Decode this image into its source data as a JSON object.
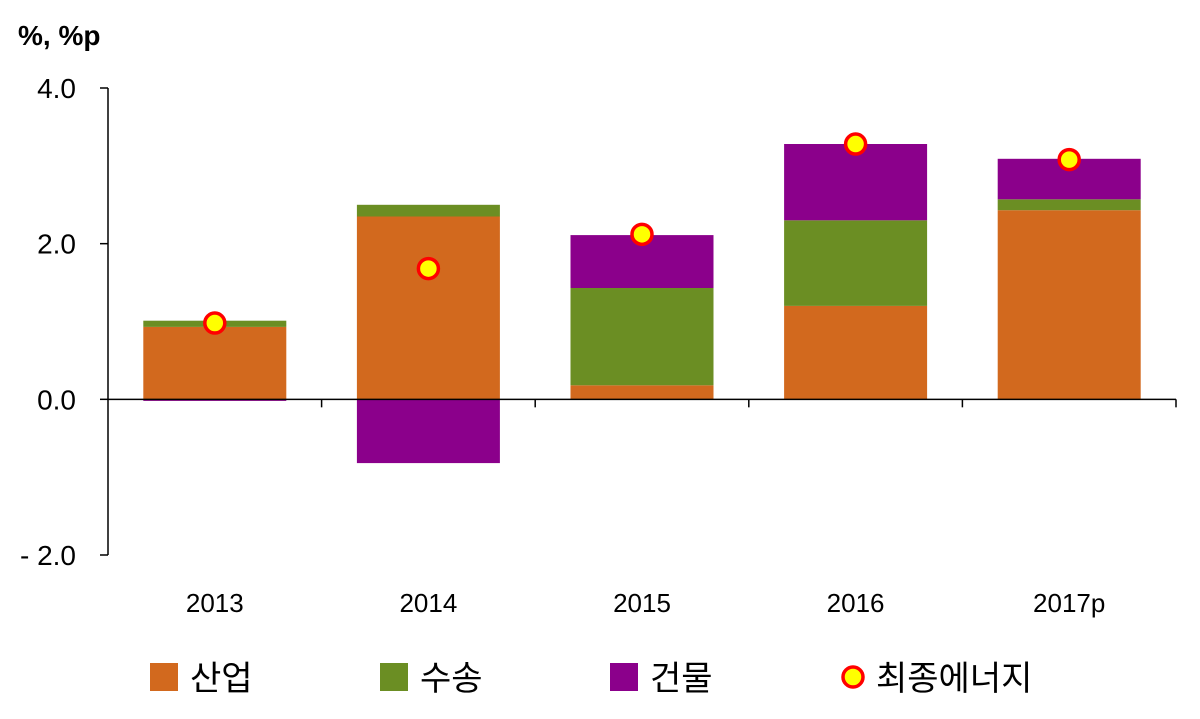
{
  "chart_data": {
    "type": "bar",
    "stacked": true,
    "unit_label": "%, %p",
    "categories": [
      "2013",
      "2014",
      "2015",
      "2016",
      "2017p"
    ],
    "series": [
      {
        "name": "산업",
        "color": "#D2691E",
        "values": [
          0.93,
          2.35,
          0.18,
          1.2,
          2.43
        ]
      },
      {
        "name": "수송",
        "color": "#6B8E23",
        "values": [
          0.08,
          0.15,
          1.25,
          1.1,
          0.14
        ]
      },
      {
        "name": "건물",
        "color": "#8B008B",
        "values": [
          -0.02,
          -0.82,
          0.68,
          0.98,
          0.52
        ]
      }
    ],
    "markers": {
      "name": "최종에너지",
      "fill": "#FFFF00",
      "stroke": "#FF0000",
      "values": [
        0.98,
        1.68,
        2.12,
        3.28,
        3.08
      ]
    },
    "ylim": [
      -2.0,
      4.0
    ],
    "yticks": [
      -2.0,
      0.0,
      2.0,
      4.0
    ],
    "ytick_labels": [
      "- 2.0",
      "0.0",
      "2.0",
      "4.0"
    ],
    "grid": false,
    "legend_position": "bottom"
  }
}
